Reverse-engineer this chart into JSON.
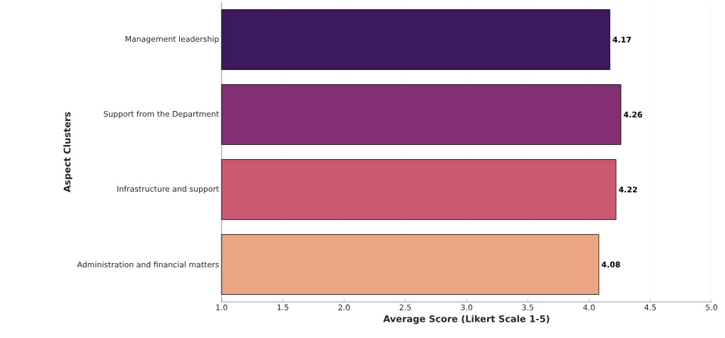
{
  "chart_data": {
    "type": "bar",
    "orientation": "horizontal",
    "xlabel": "Average Score (Likert Scale 1-5)",
    "ylabel": "Aspect Clusters",
    "categories": [
      "Management leadership",
      "Support from the Department",
      "Infrastructure and support",
      "Administration and financial matters"
    ],
    "values": [
      4.17,
      4.26,
      4.22,
      4.08
    ],
    "colors": [
      "#3b1a5e",
      "#832f74",
      "#cb5a70",
      "#eba582"
    ],
    "data_labels": true,
    "grid": "x",
    "xlim": [
      1,
      5
    ],
    "xticks": [
      {
        "value": 1,
        "label": "1.0"
      },
      {
        "value": 1.5,
        "label": "1.5"
      },
      {
        "value": 2,
        "label": "2.0"
      },
      {
        "value": 2.5,
        "label": "2.5"
      },
      {
        "value": 3,
        "label": "3.0"
      },
      {
        "value": 3.5,
        "label": "3.5"
      },
      {
        "value": 4,
        "label": "4.0"
      },
      {
        "value": 4.5,
        "label": "4.5"
      },
      {
        "value": 5,
        "label": "5.0"
      }
    ]
  }
}
